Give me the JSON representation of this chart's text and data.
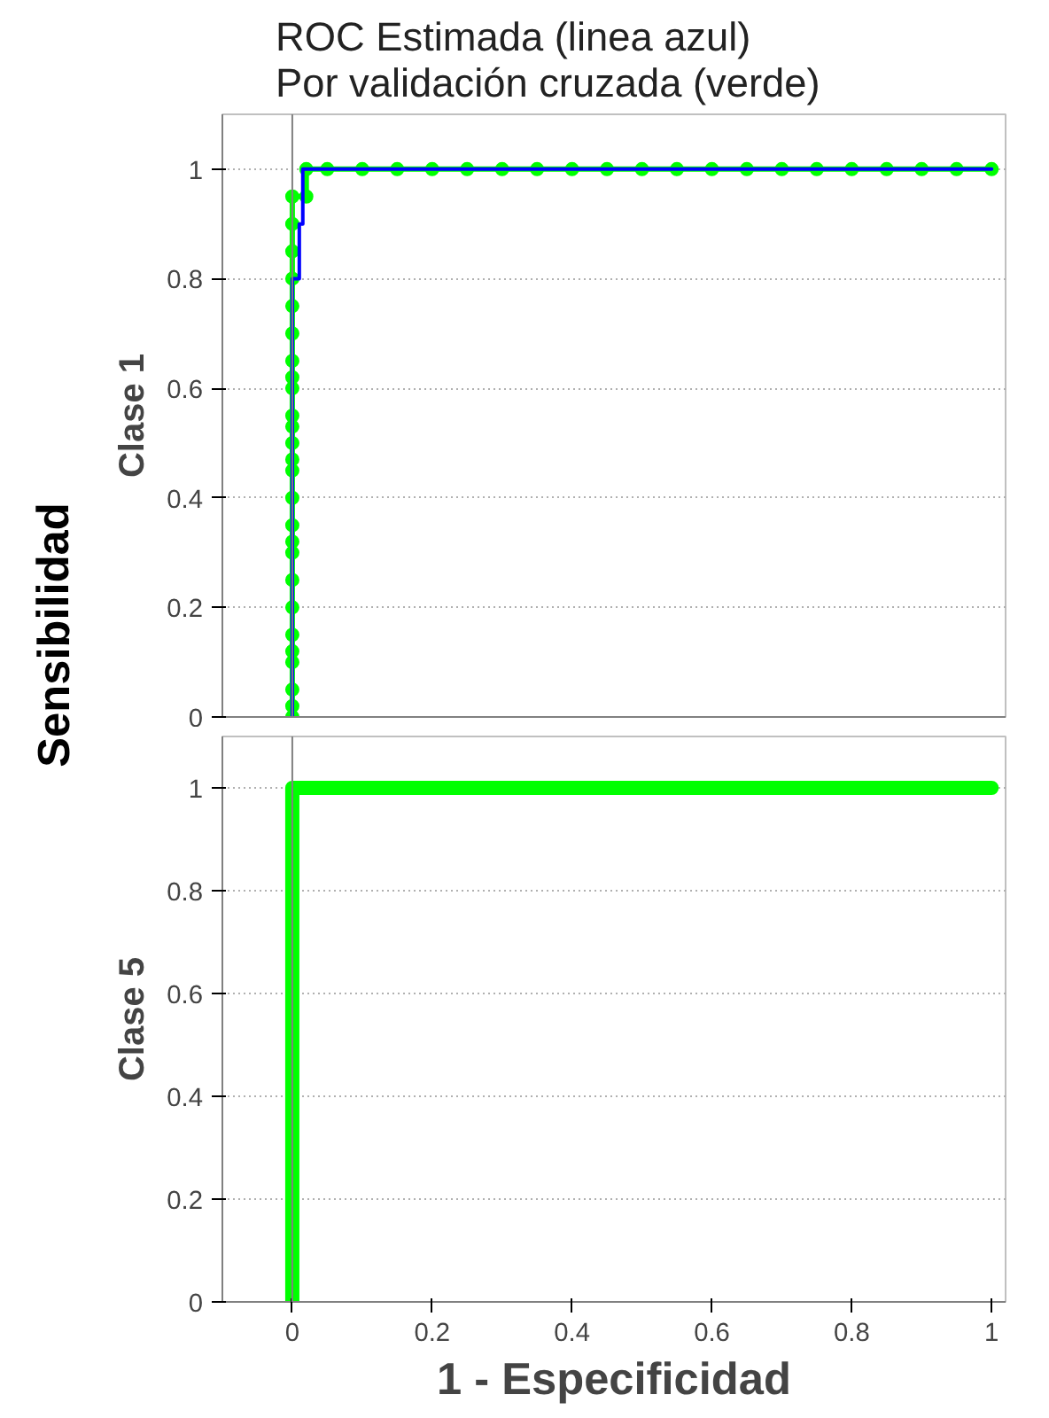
{
  "chart_data": [
    {
      "type": "line",
      "title": "ROC Estimada (linea azul)\nPor validación cruzada (verde)",
      "ylabel": "Clase 1",
      "annotations": [
        "Sensibilidad"
      ],
      "xlim": [
        -0.1,
        1.02
      ],
      "ylim": [
        0,
        1.1
      ],
      "xticks": [
        0,
        0.2,
        0.4,
        0.6,
        0.8,
        1
      ],
      "yticks": [
        0,
        0.2,
        0.4,
        0.6,
        0.8,
        1
      ],
      "tick_labels": "y",
      "grid": "y",
      "ref_lines": [
        {
          "axis": "x",
          "value": 0
        }
      ],
      "series": [
        {
          "color": "#0000ff",
          "marker": "none",
          "x": [
            0,
            0,
            0.01,
            0.01,
            0.015,
            0.015,
            1
          ],
          "values": [
            0,
            0.8,
            0.8,
            0.9,
            0.9,
            1,
            1
          ]
        },
        {
          "color": "#00ff00",
          "marker": "circle",
          "x": [
            0,
            0,
            0,
            0,
            0,
            0,
            0,
            0,
            0,
            0,
            0,
            0,
            0,
            0,
            0,
            0,
            0,
            0,
            0,
            0,
            0,
            0,
            0,
            0,
            0,
            0,
            0.02,
            0.02,
            0.05,
            0.1,
            0.15,
            0.2,
            0.25,
            0.3,
            0.35,
            0.4,
            0.45,
            0.5,
            0.55,
            0.6,
            0.65,
            0.7,
            0.75,
            0.8,
            0.85,
            0.9,
            0.95,
            1
          ],
          "values": [
            0,
            0.02,
            0.05,
            0.1,
            0.12,
            0.15,
            0.2,
            0.25,
            0.3,
            0.32,
            0.35,
            0.4,
            0.45,
            0.47,
            0.5,
            0.53,
            0.55,
            0.6,
            0.62,
            0.65,
            0.7,
            0.75,
            0.8,
            0.85,
            0.9,
            0.95,
            0.95,
            1,
            1,
            1,
            1,
            1,
            1,
            1,
            1,
            1,
            1,
            1,
            1,
            1,
            1,
            1,
            1,
            1,
            1,
            1,
            1,
            1
          ]
        }
      ]
    },
    {
      "type": "line",
      "ylabel": "Clase 5",
      "xlabel": "1 - Especificidad",
      "xlim": [
        -0.1,
        1.02
      ],
      "ylim": [
        0,
        1.1
      ],
      "xticks": [
        0,
        0.2,
        0.4,
        0.6,
        0.8,
        1
      ],
      "yticks": [
        0,
        0.2,
        0.4,
        0.6,
        0.8,
        1
      ],
      "grid": "y",
      "ref_lines": [
        {
          "axis": "x",
          "value": 0
        }
      ],
      "series": [
        {
          "color": "#00ff00",
          "marker": "none",
          "x": [
            0,
            0,
            1
          ],
          "values": [
            0,
            1,
            1
          ]
        }
      ]
    }
  ]
}
